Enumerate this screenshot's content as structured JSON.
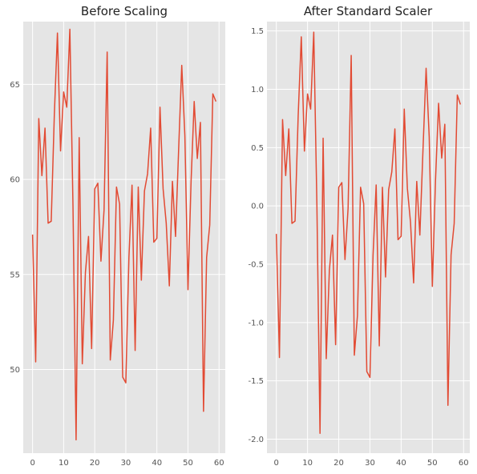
{
  "chart_data": [
    {
      "type": "line",
      "title": "Before Scaling",
      "xlabel": "",
      "ylabel": "",
      "xlim": [
        -3,
        62
      ],
      "ylim": [
        45.6,
        68.3
      ],
      "xticks": [
        0,
        10,
        20,
        30,
        40,
        50,
        60
      ],
      "yticks": [
        50,
        55,
        60,
        65
      ],
      "grid": true,
      "series": [
        {
          "color": "#E24A33",
          "x": [
            0,
            1,
            2,
            3,
            4,
            5,
            6,
            7,
            8,
            9,
            10,
            11,
            12,
            13,
            14,
            15,
            16,
            17,
            18,
            19,
            20,
            21,
            22,
            23,
            24,
            25,
            26,
            27,
            28,
            29,
            30,
            31,
            32,
            33,
            34,
            35,
            36,
            37,
            38,
            39,
            40,
            41,
            42,
            43,
            44,
            45,
            46,
            47,
            48,
            49,
            50,
            51,
            52,
            53,
            54,
            55,
            56,
            57,
            58,
            59
          ],
          "values": [
            57.1,
            50.4,
            63.2,
            60.2,
            62.7,
            57.7,
            57.8,
            63.4,
            67.7,
            61.5,
            64.6,
            63.8,
            67.9,
            58.6,
            46.3,
            62.2,
            50.3,
            55.1,
            57.0,
            51.1,
            59.5,
            59.8,
            55.7,
            58.4,
            66.7,
            50.5,
            52.6,
            59.6,
            58.7,
            49.6,
            49.3,
            55.9,
            59.7,
            51.0,
            59.6,
            54.7,
            59.4,
            60.3,
            62.7,
            56.7,
            56.9,
            63.8,
            59.5,
            57.7,
            54.4,
            59.9,
            57.0,
            61.6,
            66.0,
            62.3,
            54.2,
            59.9,
            64.1,
            61.1,
            63.0,
            47.8,
            55.9,
            57.6,
            64.5,
            64.1
          ]
        }
      ]
    },
    {
      "type": "line",
      "title": "After Standard Scaler",
      "xlabel": "",
      "ylabel": "",
      "xlim": [
        -3,
        62
      ],
      "ylim": [
        -2.12,
        1.58
      ],
      "xticks": [
        0,
        10,
        20,
        30,
        40,
        50,
        60
      ],
      "yticks": [
        -2.0,
        -1.5,
        -1.0,
        -0.5,
        0.0,
        0.5,
        1.0,
        1.5
      ],
      "ytick_labels": [
        "-2.0",
        "-1.5",
        "-1.0",
        "-0.5",
        "0.0",
        "0.5",
        "1.0",
        "1.5"
      ],
      "grid": true,
      "series": [
        {
          "color": "#E24A33",
          "x": [
            0,
            1,
            2,
            3,
            4,
            5,
            6,
            7,
            8,
            9,
            10,
            11,
            12,
            13,
            14,
            15,
            16,
            17,
            18,
            19,
            20,
            21,
            22,
            23,
            24,
            25,
            26,
            27,
            28,
            29,
            30,
            31,
            32,
            33,
            34,
            35,
            36,
            37,
            38,
            39,
            40,
            41,
            42,
            43,
            44,
            45,
            46,
            47,
            48,
            49,
            50,
            51,
            52,
            53,
            54,
            55,
            56,
            57,
            58,
            59
          ],
          "values": [
            -0.24,
            -1.3,
            0.74,
            0.26,
            0.66,
            -0.15,
            -0.13,
            0.77,
            1.45,
            0.47,
            0.96,
            0.83,
            1.49,
            0.01,
            -1.95,
            0.58,
            -1.31,
            -0.55,
            -0.25,
            -1.19,
            0.16,
            0.2,
            -0.46,
            -0.02,
            1.29,
            -1.28,
            -0.94,
            0.16,
            0.02,
            -1.42,
            -1.47,
            -0.42,
            0.18,
            -1.2,
            0.16,
            -0.61,
            0.14,
            0.29,
            0.66,
            -0.29,
            -0.26,
            0.83,
            0.15,
            -0.14,
            -0.66,
            0.21,
            -0.25,
            0.48,
            1.18,
            0.59,
            -0.69,
            0.21,
            0.88,
            0.41,
            0.7,
            -1.71,
            -0.42,
            -0.15,
            0.95,
            0.87
          ]
        }
      ]
    }
  ]
}
